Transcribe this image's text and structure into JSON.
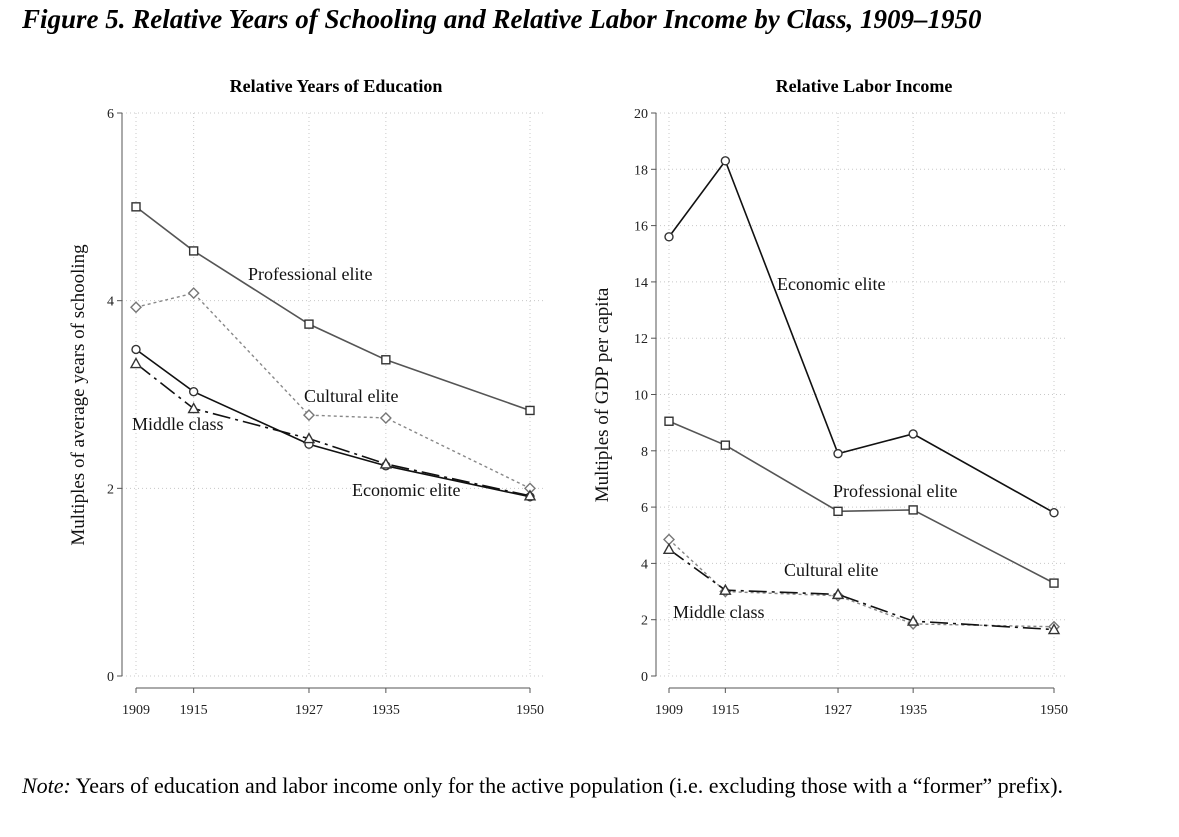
{
  "figure": {
    "title": "Figure 5. Relative Years of Schooling and Relative Labor Income by Class, 1909–1950",
    "note_lead": "Note:",
    "note_text": " Years of education and labor income only for the active population (i.e. excluding those with a “former” prefix)."
  },
  "chart_data": [
    {
      "type": "line",
      "title": "Relative Years of Education",
      "xlabel": "",
      "ylabel": "Multiples of average years of schooling",
      "x": [
        1909,
        1915,
        1927,
        1935,
        1950
      ],
      "xlim": [
        1909,
        1950
      ],
      "ylim": [
        0,
        6
      ],
      "yticks": [
        0,
        2,
        4,
        6
      ],
      "grid": true,
      "series": [
        {
          "name": "Professional elite",
          "values": [
            5.0,
            4.53,
            3.75,
            3.37,
            2.83
          ],
          "marker": "square",
          "color": "#555555",
          "dash": ""
        },
        {
          "name": "Cultural elite",
          "values": [
            3.93,
            4.08,
            2.78,
            2.75,
            2.0
          ],
          "marker": "diamond",
          "color": "#888888",
          "dash": "3,3"
        },
        {
          "name": "Economic elite",
          "values": [
            3.48,
            3.03,
            2.47,
            2.24,
            1.91
          ],
          "marker": "circle",
          "color": "#111111",
          "dash": ""
        },
        {
          "name": "Middle class",
          "values": [
            3.33,
            2.85,
            2.53,
            2.26,
            1.92
          ],
          "marker": "triangle",
          "color": "#111111",
          "dash": "18,5,3,5"
        }
      ]
    },
    {
      "type": "line",
      "title": "Relative Labor Income",
      "xlabel": "",
      "ylabel": "Multiples of GDP per capita",
      "x": [
        1909,
        1915,
        1927,
        1935,
        1950
      ],
      "xlim": [
        1909,
        1950
      ],
      "ylim": [
        0,
        20
      ],
      "yticks": [
        0,
        2,
        4,
        6,
        8,
        10,
        12,
        14,
        16,
        18,
        20
      ],
      "grid": true,
      "series": [
        {
          "name": "Economic elite",
          "values": [
            15.6,
            18.3,
            7.9,
            8.6,
            5.8
          ],
          "marker": "circle",
          "color": "#111111",
          "dash": ""
        },
        {
          "name": "Professional elite",
          "values": [
            9.05,
            8.2,
            5.85,
            5.9,
            3.3
          ],
          "marker": "square",
          "color": "#555555",
          "dash": ""
        },
        {
          "name": "Cultural elite",
          "values": [
            4.85,
            3.0,
            2.85,
            1.85,
            1.75
          ],
          "marker": "diamond",
          "color": "#888888",
          "dash": "3,3"
        },
        {
          "name": "Middle class",
          "values": [
            4.5,
            3.05,
            2.9,
            1.95,
            1.65
          ],
          "marker": "triangle",
          "color": "#111111",
          "dash": "18,5,3,5"
        }
      ]
    }
  ]
}
